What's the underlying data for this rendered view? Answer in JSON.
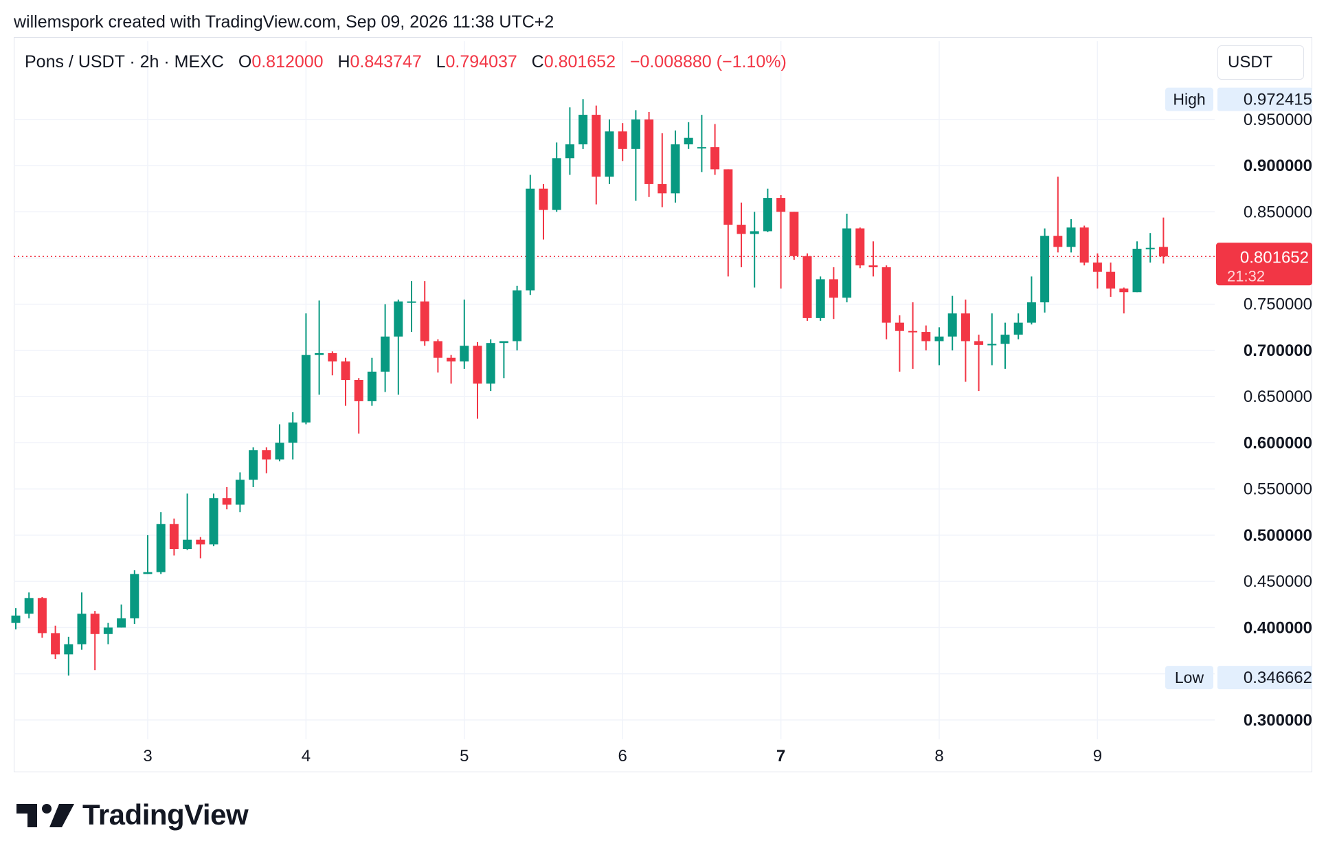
{
  "header": {
    "attribution": "willemspork created with TradingView.com, Sep 09, 2026 11:38 UTC+2"
  },
  "legend": {
    "symbol": "Pons / USDT · 2h · MEXC",
    "o_label": "O",
    "o_value": "0.812000",
    "h_label": "H",
    "h_value": "0.843747",
    "l_label": "L",
    "l_value": "0.794037",
    "c_label": "C",
    "c_value": "0.801652",
    "change": "−0.008880 (−1.10%)"
  },
  "currency_button": "USDT",
  "brand": {
    "name": "TradingView"
  },
  "colors": {
    "up": "#089981",
    "down": "#f23645",
    "grid": "#f0f3fa",
    "text": "#131722"
  },
  "chart_data": {
    "type": "candlestick",
    "interval": "2h",
    "yaxis": {
      "ticks": [
        "0.300000",
        "0.350000",
        "0.400000",
        "0.450000",
        "0.500000",
        "0.550000",
        "0.600000",
        "0.650000",
        "0.700000",
        "0.750000",
        "0.800000",
        "0.850000",
        "0.900000",
        "0.950000"
      ],
      "tick_values": [
        0.3,
        0.35,
        0.4,
        0.45,
        0.5,
        0.55,
        0.6,
        0.65,
        0.7,
        0.75,
        0.8,
        0.85,
        0.9,
        0.95
      ],
      "bold_ticks": [
        "0.300000",
        "0.400000",
        "0.500000",
        "0.600000",
        "0.700000",
        "0.900000"
      ],
      "ylim": [
        0.285,
        0.99
      ]
    },
    "xaxis": {
      "labels": [
        "3",
        "4",
        "5",
        "6",
        "7",
        "8",
        "9"
      ],
      "bold_labels": [
        "7"
      ],
      "label_candle_index": [
        10,
        22,
        34,
        46,
        58,
        70,
        82
      ]
    },
    "high_marker": {
      "label": "High",
      "value": "0.972415",
      "price": 0.972415
    },
    "low_marker": {
      "label": "Low",
      "value": "0.346662",
      "price": 0.346662
    },
    "last_price": {
      "value": "0.801652",
      "countdown": "21:32",
      "price": 0.801652
    },
    "candles": [
      [
        0.405,
        0.413,
        0.398,
        0.421
      ],
      [
        0.415,
        0.432,
        0.41,
        0.438
      ],
      [
        0.432,
        0.394,
        0.389,
        0.433
      ],
      [
        0.394,
        0.371,
        0.366,
        0.402
      ],
      [
        0.371,
        0.382,
        0.348,
        0.39
      ],
      [
        0.382,
        0.415,
        0.376,
        0.438
      ],
      [
        0.415,
        0.393,
        0.354,
        0.418
      ],
      [
        0.393,
        0.4,
        0.382,
        0.405
      ],
      [
        0.4,
        0.41,
        0.4,
        0.425
      ],
      [
        0.41,
        0.458,
        0.404,
        0.462
      ],
      [
        0.458,
        0.46,
        0.458,
        0.5
      ],
      [
        0.46,
        0.512,
        0.458,
        0.525
      ],
      [
        0.512,
        0.485,
        0.478,
        0.518
      ],
      [
        0.485,
        0.495,
        0.484,
        0.545
      ],
      [
        0.495,
        0.49,
        0.475,
        0.498
      ],
      [
        0.49,
        0.54,
        0.488,
        0.545
      ],
      [
        0.54,
        0.533,
        0.528,
        0.552
      ],
      [
        0.533,
        0.56,
        0.525,
        0.568
      ],
      [
        0.56,
        0.592,
        0.552,
        0.595
      ],
      [
        0.592,
        0.582,
        0.567,
        0.595
      ],
      [
        0.582,
        0.6,
        0.58,
        0.62
      ],
      [
        0.6,
        0.622,
        0.582,
        0.633
      ],
      [
        0.622,
        0.695,
        0.62,
        0.74
      ],
      [
        0.695,
        0.697,
        0.652,
        0.754
      ],
      [
        0.697,
        0.688,
        0.673,
        0.699
      ],
      [
        0.688,
        0.668,
        0.64,
        0.692
      ],
      [
        0.668,
        0.645,
        0.61,
        0.67
      ],
      [
        0.645,
        0.677,
        0.64,
        0.692
      ],
      [
        0.677,
        0.715,
        0.655,
        0.75
      ],
      [
        0.715,
        0.753,
        0.652,
        0.755
      ],
      [
        0.753,
        0.753,
        0.72,
        0.775
      ],
      [
        0.753,
        0.71,
        0.705,
        0.775
      ],
      [
        0.71,
        0.692,
        0.676,
        0.712
      ],
      [
        0.692,
        0.688,
        0.664,
        0.695
      ],
      [
        0.688,
        0.705,
        0.68,
        0.755
      ],
      [
        0.705,
        0.664,
        0.626,
        0.709
      ],
      [
        0.664,
        0.708,
        0.656,
        0.712
      ],
      [
        0.708,
        0.71,
        0.67,
        0.71
      ],
      [
        0.71,
        0.765,
        0.7,
        0.77
      ],
      [
        0.765,
        0.875,
        0.76,
        0.89
      ],
      [
        0.875,
        0.852,
        0.82,
        0.88
      ],
      [
        0.852,
        0.908,
        0.85,
        0.925
      ],
      [
        0.908,
        0.923,
        0.89,
        0.963
      ],
      [
        0.923,
        0.955,
        0.918,
        0.972
      ],
      [
        0.955,
        0.888,
        0.858,
        0.965
      ],
      [
        0.888,
        0.937,
        0.88,
        0.95
      ],
      [
        0.937,
        0.918,
        0.905,
        0.946
      ],
      [
        0.918,
        0.95,
        0.862,
        0.96
      ],
      [
        0.95,
        0.88,
        0.866,
        0.958
      ],
      [
        0.88,
        0.87,
        0.855,
        0.935
      ],
      [
        0.87,
        0.923,
        0.86,
        0.938
      ],
      [
        0.923,
        0.93,
        0.918,
        0.947
      ],
      [
        0.92,
        0.92,
        0.893,
        0.955
      ],
      [
        0.92,
        0.896,
        0.89,
        0.945
      ],
      [
        0.896,
        0.836,
        0.78,
        0.896
      ],
      [
        0.836,
        0.826,
        0.79,
        0.86
      ],
      [
        0.826,
        0.829,
        0.768,
        0.85
      ],
      [
        0.829,
        0.865,
        0.828,
        0.875
      ],
      [
        0.865,
        0.85,
        0.767,
        0.868
      ],
      [
        0.85,
        0.802,
        0.798,
        0.85
      ],
      [
        0.802,
        0.735,
        0.732,
        0.805
      ],
      [
        0.735,
        0.777,
        0.732,
        0.78
      ],
      [
        0.777,
        0.757,
        0.734,
        0.79
      ],
      [
        0.757,
        0.832,
        0.752,
        0.848
      ],
      [
        0.832,
        0.792,
        0.789,
        0.833
      ],
      [
        0.792,
        0.79,
        0.78,
        0.818
      ],
      [
        0.79,
        0.73,
        0.712,
        0.792
      ],
      [
        0.73,
        0.721,
        0.677,
        0.738
      ],
      [
        0.721,
        0.72,
        0.68,
        0.752
      ],
      [
        0.72,
        0.71,
        0.7,
        0.727
      ],
      [
        0.71,
        0.715,
        0.684,
        0.725
      ],
      [
        0.715,
        0.74,
        0.7,
        0.759
      ],
      [
        0.74,
        0.71,
        0.666,
        0.755
      ],
      [
        0.71,
        0.706,
        0.656,
        0.717
      ],
      [
        0.706,
        0.707,
        0.684,
        0.74
      ],
      [
        0.707,
        0.717,
        0.68,
        0.73
      ],
      [
        0.717,
        0.73,
        0.712,
        0.74
      ],
      [
        0.73,
        0.752,
        0.728,
        0.78
      ],
      [
        0.752,
        0.824,
        0.741,
        0.832
      ],
      [
        0.824,
        0.812,
        0.806,
        0.888
      ],
      [
        0.812,
        0.833,
        0.806,
        0.842
      ],
      [
        0.833,
        0.795,
        0.792,
        0.835
      ],
      [
        0.795,
        0.785,
        0.767,
        0.805
      ],
      [
        0.785,
        0.767,
        0.758,
        0.795
      ],
      [
        0.767,
        0.763,
        0.74,
        0.768
      ],
      [
        0.763,
        0.81,
        0.763,
        0.818
      ],
      [
        0.81,
        0.811,
        0.795,
        0.827
      ],
      [
        0.812,
        0.801652,
        0.794037,
        0.843747
      ]
    ]
  }
}
